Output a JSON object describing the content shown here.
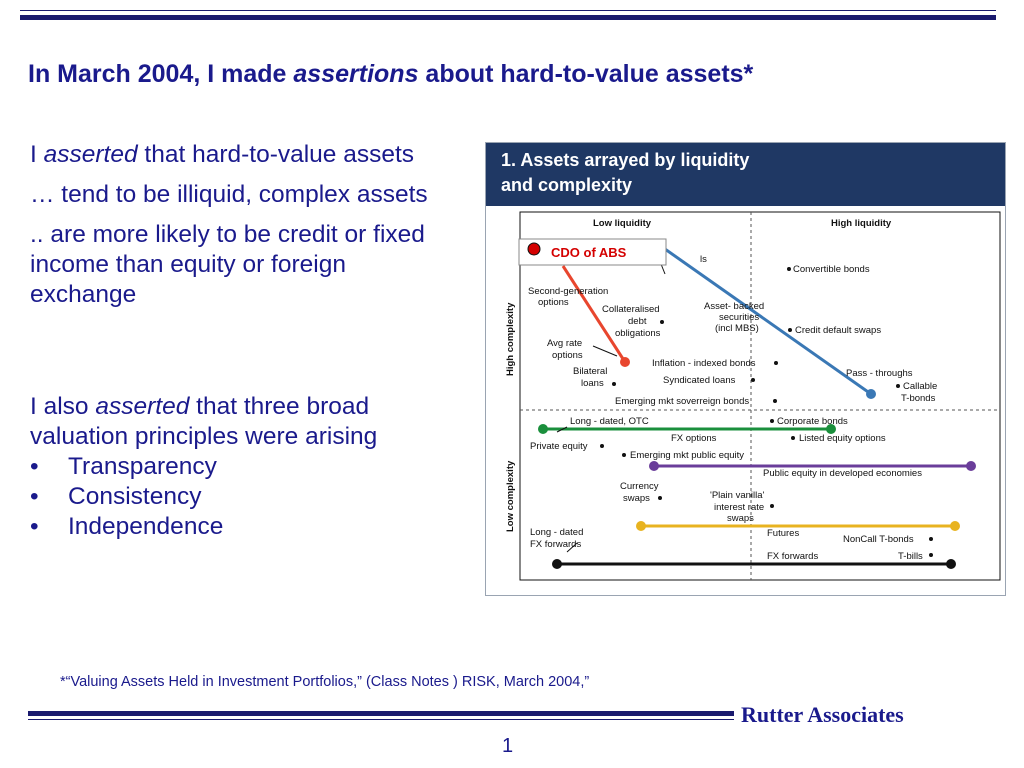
{
  "slide": {
    "title_prefix": "In March 2004, I made ",
    "title_emphasis": "assertions",
    "title_suffix": " about hard-to-value assets*",
    "para1_prefix": "I ",
    "para1_emphasis": "asserted",
    "para1_suffix": " that hard-to-value assets",
    "para2": "… tend to be illiquid, complex assets",
    "para3": ".. are more likely to be credit or fixed income than equity or foreign exchange",
    "para4_prefix": "I also ",
    "para4_emphasis": "asserted",
    "para4_suffix": " that three broad valuation principles were arising",
    "bullet_glyph": "•",
    "bullets": [
      "Transparency",
      "Consistency",
      "Independence"
    ],
    "footnote": "*“Valuing Assets Held in Investment Portfolios,” (Class Notes ) RISK, March 2004,”",
    "brand": "Rutter Associates",
    "page_number": "1"
  },
  "figure": {
    "header_line1": "1. Assets arrayed by liquidity",
    "header_line2": "and complexity",
    "col_low": "Low liquidity",
    "col_high": "High liquidity",
    "row_high": "High complexity",
    "row_low": "Low complexity",
    "callout": "CDO of ABS",
    "callout_fragment": "ls",
    "labels": {
      "second_gen_1": "Second-generation",
      "second_gen_2": "options",
      "collateralised_1": "Collateralised",
      "collateralised_2": "debt",
      "collateralised_3": "obligations",
      "avg_rate_1": "Avg rate",
      "avg_rate_2": "options",
      "bilateral_1": "Bilateral",
      "bilateral_2": "loans",
      "asset_backed_1": "Asset- backed",
      "asset_backed_2": "securities",
      "asset_backed_3": "(incl MBS)",
      "convertible": "Convertible bonds",
      "cds": "Credit default swaps",
      "inflation": "Inflation - indexed bonds",
      "syndicated": "Syndicated loans",
      "emerging_sov": "Emerging mkt soverreign bonds",
      "pass_through": "Pass - throughs",
      "callable_1": "Callable",
      "callable_2": "T-bonds",
      "long_dated_otc": "Long - dated, OTC",
      "corporate": "Corporate bonds",
      "private_equity": "Private equity",
      "fx_options": "FX options",
      "listed_equity": "Listed equity options",
      "emerging_equity": "Emerging mkt public equity",
      "public_equity": "Public equity in developed economies",
      "currency_swaps_1": "Currency",
      "currency_swaps_2": "swaps",
      "vanilla_1": "'Plain vanilla'",
      "vanilla_2": "interest rate",
      "vanilla_3": "swaps",
      "futures": "Futures",
      "noncall": "NonCall T-bonds",
      "long_fx_1": "Long - dated",
      "long_fx_2": "FX forwards",
      "fx_forwards": "FX forwards",
      "tbills": "T-bills"
    },
    "colors": {
      "header_bg": "#1f3864",
      "red": "#e8462e",
      "blue": "#3a78b5",
      "green": "#1a8f3c",
      "purple": "#6a3d9a",
      "gold": "#e8b320",
      "black": "#111111",
      "callout_red": "#d40000"
    }
  }
}
